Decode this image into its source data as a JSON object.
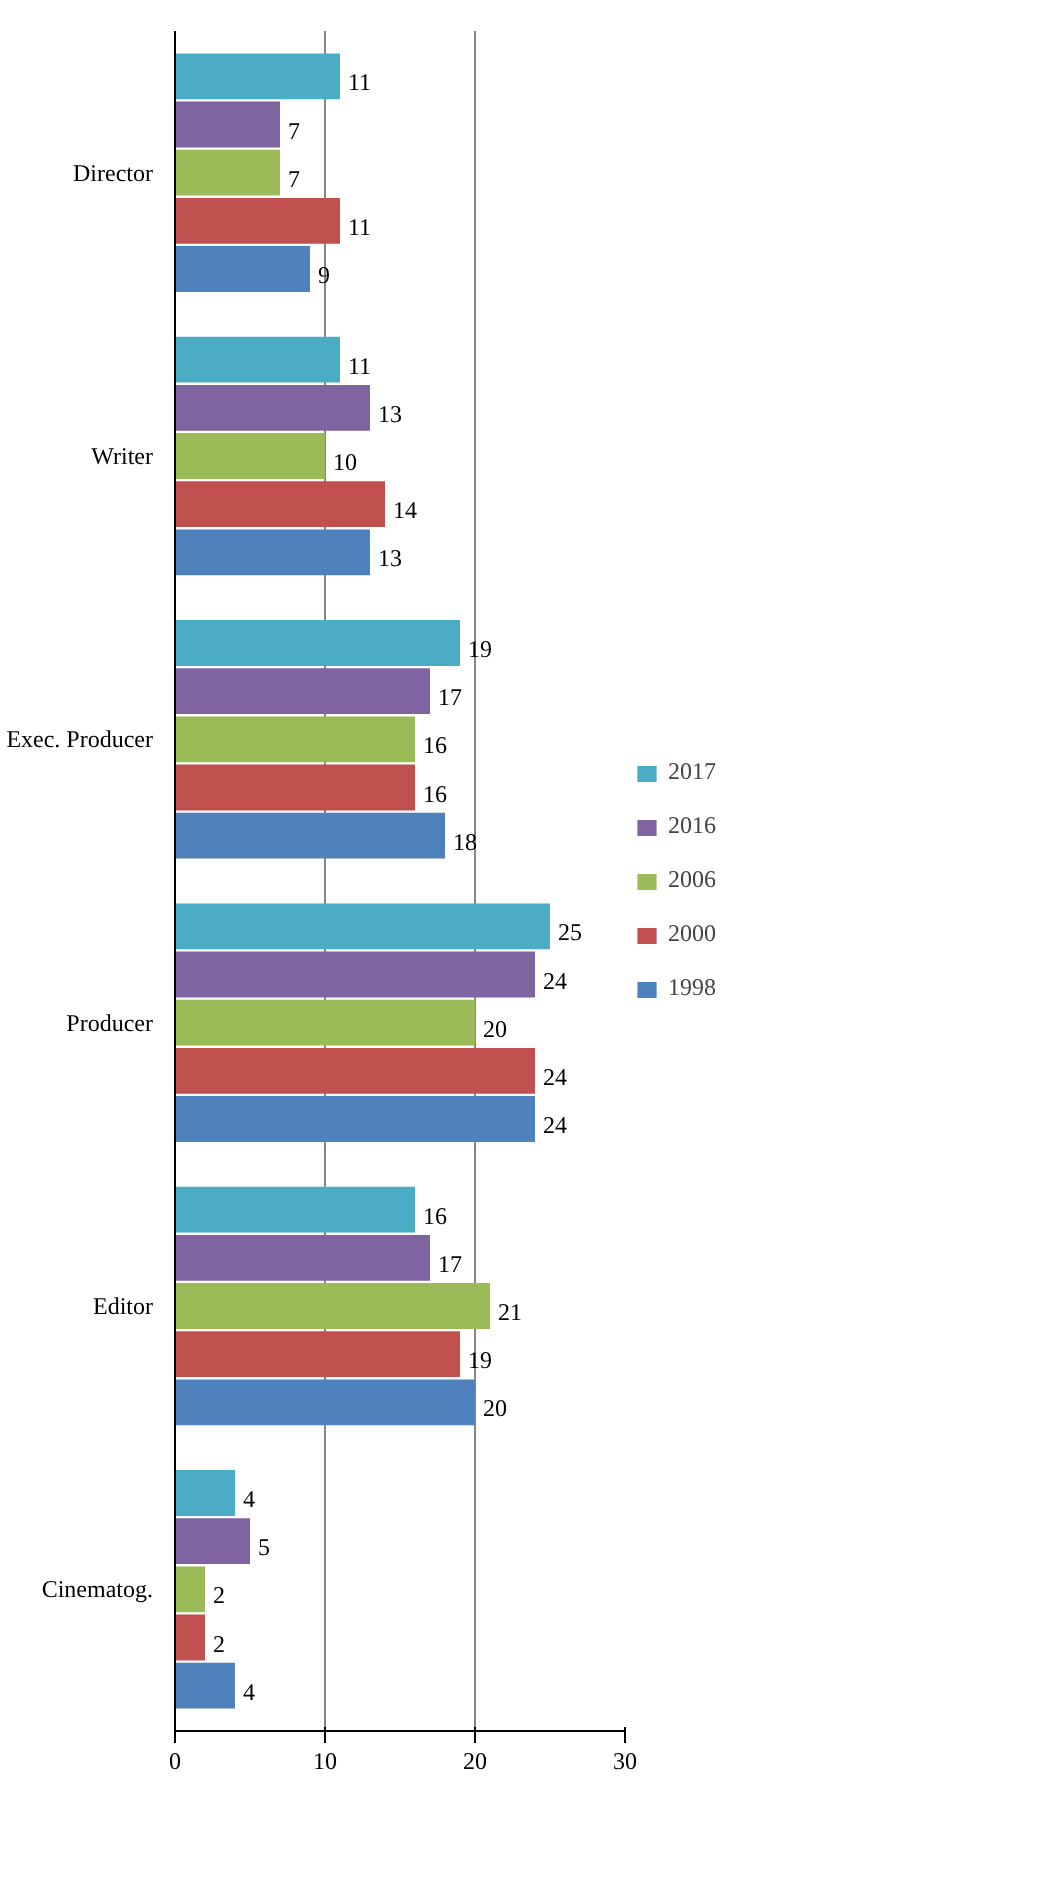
{
  "chart_data": {
    "type": "bar",
    "orientation": "horizontal",
    "categories": [
      "Director",
      "Writer",
      "Exec. Producer",
      "Producer",
      "Editor",
      "Cinematog."
    ],
    "series": [
      {
        "name": "2017",
        "color": "#4bacc6",
        "values": [
          11,
          11,
          19,
          25,
          16,
          4
        ]
      },
      {
        "name": "2016",
        "color": "#8064a2",
        "values": [
          7,
          13,
          17,
          24,
          17,
          5
        ]
      },
      {
        "name": "2006",
        "color": "#9bbb59",
        "values": [
          7,
          10,
          16,
          20,
          21,
          2
        ]
      },
      {
        "name": "2000",
        "color": "#c0504d",
        "values": [
          11,
          14,
          16,
          24,
          19,
          2
        ]
      },
      {
        "name": "1998",
        "color": "#4f81bd",
        "values": [
          9,
          13,
          18,
          24,
          20,
          4
        ]
      }
    ],
    "xlim": [
      0,
      30
    ],
    "xticks": [
      0,
      10,
      20,
      30
    ],
    "grid": "x",
    "data_labels": true,
    "legend": "right"
  }
}
